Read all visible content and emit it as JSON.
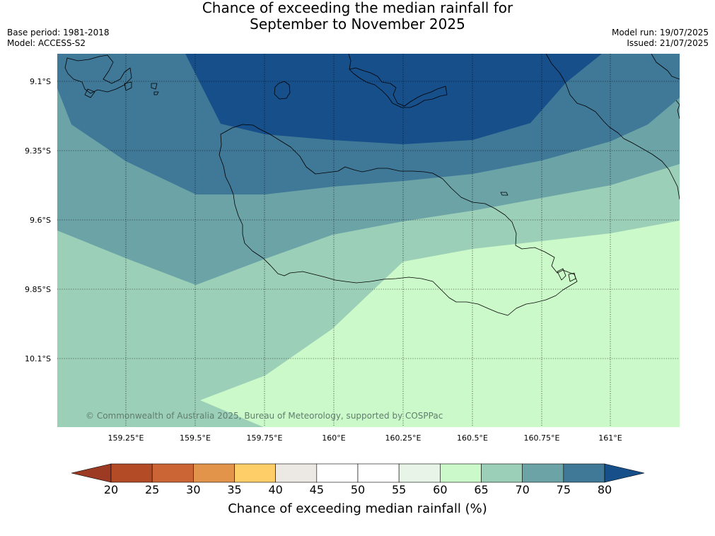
{
  "title": {
    "line1": "Chance of exceeding the median rainfall for",
    "line2": "September to November 2025"
  },
  "meta": {
    "base_period": "Base period: 1981-2018",
    "model": "Model: ACCESS-S2",
    "model_run": "Model run: 19/07/2025",
    "issued": "Issued: 21/07/2025"
  },
  "map": {
    "lat_labels": [
      "9.1°S",
      "9.35°S",
      "9.6°S",
      "9.85°S",
      "10.1°S"
    ],
    "lon_labels": [
      "159.25°E",
      "159.5°E",
      "159.75°E",
      "160°E",
      "160.25°E",
      "160.5°E",
      "160.75°E",
      "161°E"
    ],
    "copyright": "© Commonwealth of Australia 2025, Bureau of Meteorology, supported by COSPPac",
    "fill_colors": {
      "b60_65": "#ccf9c9",
      "b65_70": "#9ccfb7",
      "b70_75": "#6ba3a7",
      "b75_80": "#407897",
      "b80_up": "#164f8a"
    }
  },
  "colorbar": {
    "ticks": [
      "20",
      "25",
      "30",
      "35",
      "40",
      "45",
      "50",
      "55",
      "60",
      "65",
      "70",
      "75",
      "80"
    ],
    "colors": [
      "#9c3a24",
      "#b44b27",
      "#cc6535",
      "#e2954a",
      "#fecf68",
      "#ece9e4",
      "#ffffff",
      "#ffffff",
      "#e8f4e7",
      "#ccf9c9",
      "#9ccfb7",
      "#6ba3a7",
      "#407897",
      "#164f8a"
    ],
    "label": "Chance of exceeding median rainfall (%)"
  }
}
